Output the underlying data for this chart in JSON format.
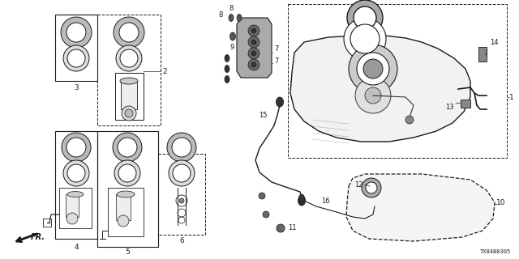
{
  "diagram_code": "TX84B0305",
  "bg_color": "#ffffff",
  "line_color": "#1a1a1a",
  "fig_width": 6.4,
  "fig_height": 3.2,
  "dpi": 100
}
